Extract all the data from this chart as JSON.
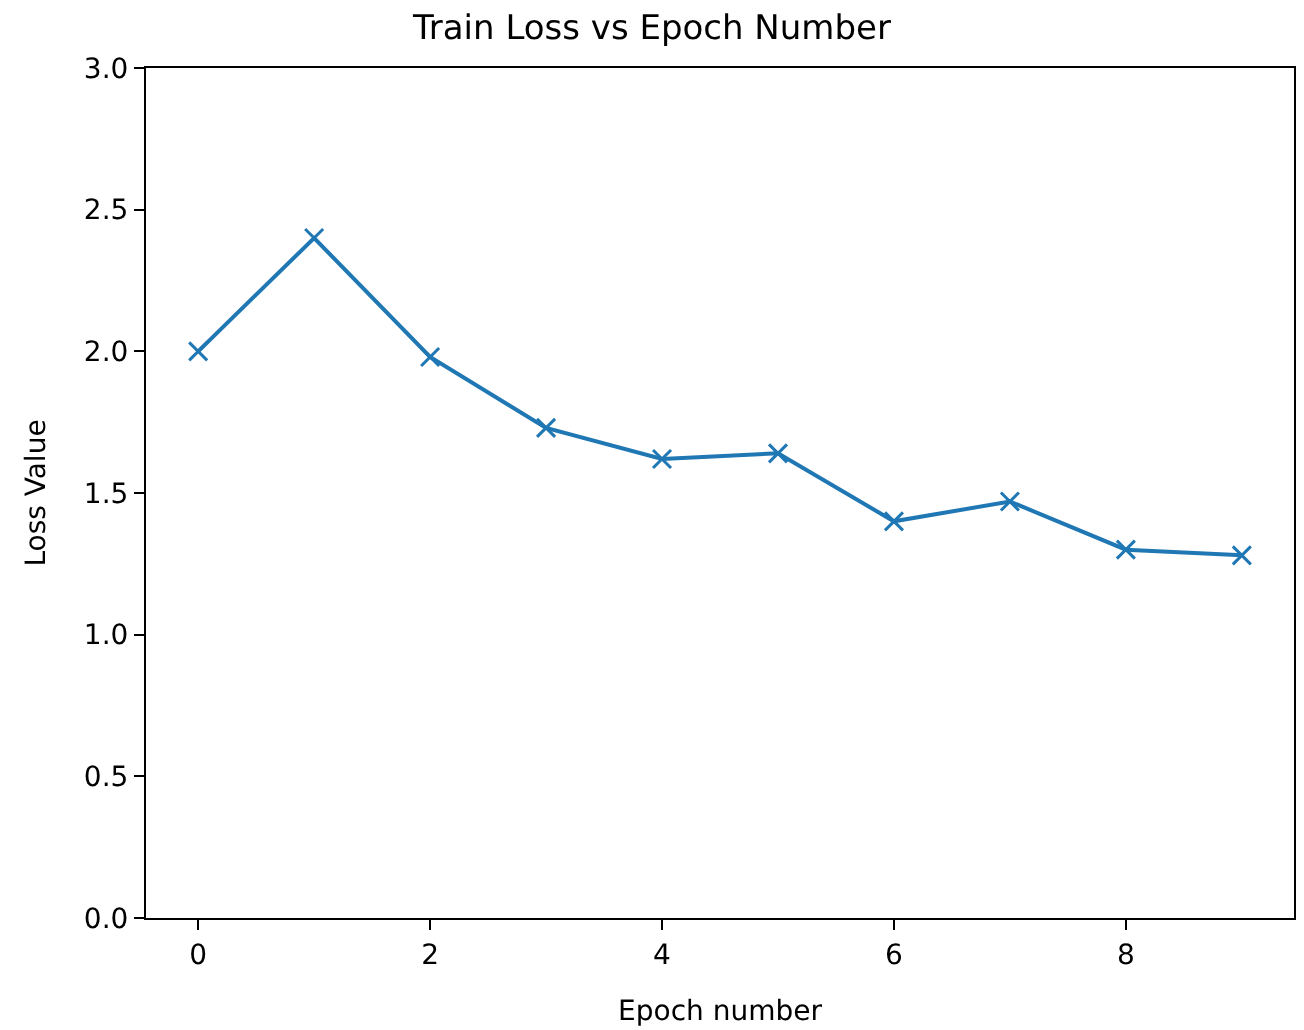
{
  "chart_data": {
    "type": "line",
    "title": "Train Loss vs Epoch Number",
    "xlabel": "Epoch number",
    "ylabel": "Loss Value",
    "x": [
      0,
      1,
      2,
      3,
      4,
      5,
      6,
      7,
      8,
      9
    ],
    "series": [
      {
        "color": "#1f77b4",
        "values": [
          2.0,
          2.4,
          1.98,
          1.73,
          1.62,
          1.64,
          1.4,
          1.47,
          1.3,
          1.28
        ]
      }
    ],
    "xlim": [
      -0.45,
      9.45
    ],
    "xticks": [
      0,
      2,
      4,
      6,
      8
    ],
    "ylim": [
      0,
      3
    ],
    "yticks": [
      {
        "value": 0,
        "label": "0.0"
      },
      {
        "value": 0.5,
        "label": "0.5"
      },
      {
        "value": 1,
        "label": "1.0"
      },
      {
        "value": 1.5,
        "label": "1.5"
      },
      {
        "value": 2,
        "label": "2.0"
      },
      {
        "value": 2.5,
        "label": "2.5"
      },
      {
        "value": 3,
        "label": "3.0"
      }
    ],
    "marker": "cross",
    "line_style": "solid",
    "grid": false,
    "legend": false
  }
}
